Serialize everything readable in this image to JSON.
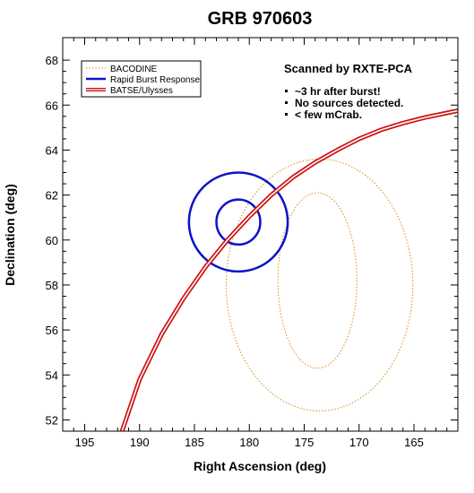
{
  "chart_data": {
    "type": "line",
    "title": "GRB 970603",
    "xlabel": "Right Ascension (deg)",
    "ylabel": "Declination (deg)",
    "xlim": [
      197,
      161
    ],
    "ylim": [
      51.5,
      69
    ],
    "x_ticks": [
      195,
      190,
      185,
      180,
      175,
      170,
      165
    ],
    "y_ticks": [
      52,
      54,
      56,
      58,
      60,
      62,
      64,
      66,
      68
    ],
    "grid": false,
    "legend_position": "top-left",
    "legend": [
      {
        "label": "BACODINE",
        "color": "#d98a1c",
        "style": "dotted"
      },
      {
        "label": "Rapid Burst Response",
        "color": "#0a14c8",
        "style": "solid-thick"
      },
      {
        "label": "BATSE/Ulysses",
        "color": "#cc1111",
        "style": "double"
      }
    ],
    "series": [
      {
        "name": "BACODINE",
        "shape": "ellipses",
        "color": "#d98a1c",
        "ellipses": [
          {
            "ra_center": 173.6,
            "dec_center": 58.0,
            "ra_half_width": 8.5,
            "dec_half_width": 5.6
          },
          {
            "ra_center": 173.8,
            "dec_center": 58.2,
            "ra_half_width": 3.6,
            "dec_half_width": 3.9
          }
        ]
      },
      {
        "name": "Rapid Burst Response",
        "shape": "ellipses",
        "color": "#0a14c8",
        "ellipses": [
          {
            "ra_center": 181.0,
            "dec_center": 60.8,
            "ra_half_width": 4.5,
            "dec_half_width": 2.2
          },
          {
            "ra_center": 181.0,
            "dec_center": 60.8,
            "ra_half_width": 2.0,
            "dec_half_width": 1.0
          }
        ]
      },
      {
        "name": "BATSE/Ulysses",
        "shape": "annulus",
        "color": "#cc1111",
        "x": [
          191.6,
          190,
          188,
          186,
          184,
          182,
          180,
          178,
          176,
          174,
          172,
          170,
          168,
          166,
          164,
          162,
          161
        ],
        "y": [
          51.5,
          53.8,
          55.8,
          57.4,
          58.8,
          60.0,
          61.05,
          62.0,
          62.8,
          63.45,
          64.0,
          64.5,
          64.9,
          65.2,
          65.45,
          65.65,
          65.75
        ]
      }
    ],
    "annotation": {
      "heading": "Scanned by RXTE-PCA",
      "bullets": [
        "~3 hr after burst!",
        "No sources detected.",
        "< few mCrab."
      ]
    }
  }
}
